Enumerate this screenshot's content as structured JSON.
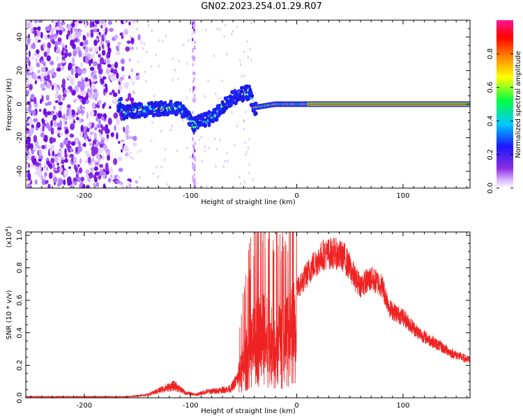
{
  "title": "GN02.2023.254.01.29.R07",
  "colors": {
    "snr_line": "#ee2222",
    "signal_line_core": "#ff1a1a",
    "signal_line_mid": "#ffd400",
    "noise": "#7a1cf0"
  },
  "chart_data": [
    {
      "type": "heatmap",
      "title": "",
      "xlabel": "Height of straight line (km)",
      "ylabel": "Frequency (Hz)",
      "xlim": [
        -255,
        163
      ],
      "ylim": [
        -50,
        50
      ],
      "xticks": [
        -200,
        -100,
        0,
        100
      ],
      "yticks": [
        -40,
        -20,
        0,
        20,
        40
      ],
      "xtick_labels": [
        "-200",
        "-100",
        "0",
        "100"
      ],
      "ytick_labels": [
        "-40",
        "-20",
        "0",
        "20",
        "40"
      ],
      "colorbar": {
        "label": "Normalized spectral amplitude",
        "range": [
          0,
          1
        ],
        "ticks": [
          0.0,
          0.2,
          0.4,
          0.6,
          0.8
        ],
        "tick_labels": [
          "0.0",
          "0.2",
          "0.4",
          "0.6",
          "0.8"
        ],
        "colors": [
          "#ffffff",
          "#8a2be2",
          "#1a1aff",
          "#00c8ff",
          "#00ff44",
          "#ffff00",
          "#ff8800",
          "#ff0000",
          "#ff1493"
        ]
      },
      "features": {
        "noise_region_x": [
          -255,
          -160
        ],
        "signal_track": [
          {
            "x": -165,
            "y": -5
          },
          {
            "x": -140,
            "y": -3
          },
          {
            "x": -110,
            "y": -2
          },
          {
            "x": -97,
            "y": -12
          },
          {
            "x": -80,
            "y": -8
          },
          {
            "x": -60,
            "y": 4
          },
          {
            "x": -45,
            "y": 7
          },
          {
            "x": -40,
            "y": -2
          },
          {
            "x": -20,
            "y": 0
          },
          {
            "x": 0,
            "y": 0
          },
          {
            "x": 163,
            "y": 0
          }
        ]
      }
    },
    {
      "type": "line",
      "title": "",
      "xlabel": "Height of straight line (km)",
      "ylabel": "SNR (10 * v/v)",
      "multiplier": "(x10",
      "multiplier_exp": "4",
      "multiplier_close": ")",
      "xlim": [
        -255,
        163
      ],
      "ylim": [
        0,
        1.02
      ],
      "xticks": [
        -200,
        -100,
        0,
        100
      ],
      "yticks": [
        0.0,
        0.2,
        0.4,
        0.6,
        0.8,
        1.0
      ],
      "xtick_labels": [
        "-200",
        "-100",
        "0",
        "100"
      ],
      "ytick_labels": [
        "0.0",
        "0.2",
        "0.4",
        "0.6",
        "0.8",
        "1.0"
      ],
      "series": [
        {
          "envelope": [
            {
              "x": -255,
              "y": 0.01
            },
            {
              "x": -200,
              "y": 0.01
            },
            {
              "x": -160,
              "y": 0.01
            },
            {
              "x": -140,
              "y": 0.03
            },
            {
              "x": -125,
              "y": 0.09
            },
            {
              "x": -115,
              "y": 0.12
            },
            {
              "x": -105,
              "y": 0.05
            },
            {
              "x": -95,
              "y": 0.03
            },
            {
              "x": -85,
              "y": 0.06
            },
            {
              "x": -75,
              "y": 0.07
            },
            {
              "x": -62,
              "y": 0.09
            },
            {
              "x": -55,
              "y": 0.2
            },
            {
              "x": -45,
              "y": 0.45
            },
            {
              "x": -35,
              "y": 0.6
            },
            {
              "x": -25,
              "y": 0.55
            },
            {
              "x": -15,
              "y": 0.52
            },
            {
              "x": -5,
              "y": 0.62
            },
            {
              "x": 5,
              "y": 0.72
            },
            {
              "x": 15,
              "y": 0.82
            },
            {
              "x": 25,
              "y": 0.89
            },
            {
              "x": 35,
              "y": 0.9
            },
            {
              "x": 45,
              "y": 0.87
            },
            {
              "x": 55,
              "y": 0.74
            },
            {
              "x": 60,
              "y": 0.7
            },
            {
              "x": 70,
              "y": 0.74
            },
            {
              "x": 80,
              "y": 0.7
            },
            {
              "x": 88,
              "y": 0.55
            },
            {
              "x": 100,
              "y": 0.5
            },
            {
              "x": 115,
              "y": 0.4
            },
            {
              "x": 130,
              "y": 0.34
            },
            {
              "x": 145,
              "y": 0.28
            },
            {
              "x": 163,
              "y": 0.23
            }
          ]
        }
      ]
    }
  ]
}
